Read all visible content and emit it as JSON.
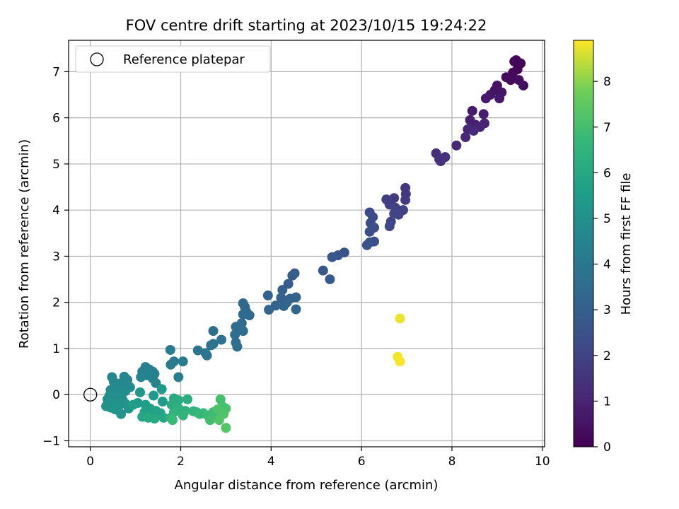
{
  "chart_data": {
    "type": "scatter",
    "title": "FOV centre drift starting at 2023/10/15 19:24:22",
    "xlabel": "Angular distance from reference (arcmin)",
    "ylabel": "Rotation from reference (arcmin)",
    "xlim": [
      -0.48,
      10.05
    ],
    "ylim": [
      -1.13,
      7.68
    ],
    "xticks": [
      0,
      2,
      4,
      6,
      8,
      10
    ],
    "yticks": [
      -1,
      0,
      1,
      2,
      3,
      4,
      5,
      6,
      7
    ],
    "grid": true,
    "legend": {
      "placement": "top-left",
      "entries": [
        "Reference platepar"
      ]
    },
    "reference_point": {
      "x": 0,
      "y": 0
    },
    "colorbar": {
      "label": "Hours from first FF file",
      "colormap": "viridis",
      "range": [
        0,
        8.9
      ],
      "ticks": [
        0,
        1,
        2,
        3,
        4,
        5,
        6,
        7,
        8
      ]
    },
    "points": [
      {
        "x": 9.42,
        "y": 7.25,
        "h": 0.05
      },
      {
        "x": 9.38,
        "y": 7.22,
        "h": 0.08
      },
      {
        "x": 9.52,
        "y": 7.18,
        "h": 0.12
      },
      {
        "x": 9.45,
        "y": 7.05,
        "h": 0.15
      },
      {
        "x": 9.35,
        "y": 6.98,
        "h": 0.2
      },
      {
        "x": 9.2,
        "y": 6.88,
        "h": 0.25
      },
      {
        "x": 9.3,
        "y": 6.82,
        "h": 0.3
      },
      {
        "x": 9.48,
        "y": 6.82,
        "h": 0.35
      },
      {
        "x": 9.58,
        "y": 6.7,
        "h": 0.4
      },
      {
        "x": 9.0,
        "y": 6.7,
        "h": 0.45
      },
      {
        "x": 8.95,
        "y": 6.6,
        "h": 0.5
      },
      {
        "x": 9.1,
        "y": 6.55,
        "h": 0.55
      },
      {
        "x": 8.85,
        "y": 6.5,
        "h": 0.6
      },
      {
        "x": 9.05,
        "y": 6.42,
        "h": 0.65
      },
      {
        "x": 8.75,
        "y": 6.42,
        "h": 0.7
      },
      {
        "x": 8.45,
        "y": 6.15,
        "h": 0.75
      },
      {
        "x": 8.7,
        "y": 6.08,
        "h": 0.8
      },
      {
        "x": 8.4,
        "y": 5.95,
        "h": 0.85
      },
      {
        "x": 8.52,
        "y": 5.85,
        "h": 0.9
      },
      {
        "x": 8.72,
        "y": 5.88,
        "h": 0.95
      },
      {
        "x": 8.62,
        "y": 5.8,
        "h": 1.0
      },
      {
        "x": 8.35,
        "y": 5.75,
        "h": 1.05
      },
      {
        "x": 8.48,
        "y": 5.72,
        "h": 1.1
      },
      {
        "x": 8.3,
        "y": 5.58,
        "h": 1.15
      },
      {
        "x": 8.1,
        "y": 5.4,
        "h": 1.2
      },
      {
        "x": 7.65,
        "y": 5.23,
        "h": 1.3
      },
      {
        "x": 7.85,
        "y": 5.15,
        "h": 1.35
      },
      {
        "x": 7.72,
        "y": 5.1,
        "h": 1.4
      },
      {
        "x": 7.75,
        "y": 5.06,
        "h": 1.45
      },
      {
        "x": 6.97,
        "y": 4.48,
        "h": 1.6
      },
      {
        "x": 6.98,
        "y": 4.35,
        "h": 1.65
      },
      {
        "x": 6.97,
        "y": 4.22,
        "h": 1.7
      },
      {
        "x": 6.72,
        "y": 4.26,
        "h": 1.75
      },
      {
        "x": 6.55,
        "y": 4.23,
        "h": 1.8
      },
      {
        "x": 6.62,
        "y": 4.12,
        "h": 1.85
      },
      {
        "x": 6.75,
        "y": 4.05,
        "h": 1.9
      },
      {
        "x": 6.92,
        "y": 4.0,
        "h": 1.95
      },
      {
        "x": 6.82,
        "y": 3.9,
        "h": 2.0
      },
      {
        "x": 6.72,
        "y": 3.92,
        "h": 2.05
      },
      {
        "x": 6.65,
        "y": 3.75,
        "h": 2.1
      },
      {
        "x": 6.62,
        "y": 3.65,
        "h": 2.15
      },
      {
        "x": 6.18,
        "y": 3.95,
        "h": 2.2
      },
      {
        "x": 6.25,
        "y": 3.85,
        "h": 2.25
      },
      {
        "x": 6.2,
        "y": 3.72,
        "h": 2.3
      },
      {
        "x": 6.28,
        "y": 3.62,
        "h": 2.35
      },
      {
        "x": 6.18,
        "y": 3.53,
        "h": 2.4
      },
      {
        "x": 6.28,
        "y": 3.32,
        "h": 2.45
      },
      {
        "x": 6.18,
        "y": 3.3,
        "h": 2.5
      },
      {
        "x": 6.12,
        "y": 3.24,
        "h": 2.55
      },
      {
        "x": 5.62,
        "y": 3.08,
        "h": 2.6
      },
      {
        "x": 5.48,
        "y": 3.02,
        "h": 2.65
      },
      {
        "x": 5.35,
        "y": 2.98,
        "h": 2.7
      },
      {
        "x": 5.15,
        "y": 2.69,
        "h": 2.75
      },
      {
        "x": 5.3,
        "y": 2.5,
        "h": 2.8
      },
      {
        "x": 4.52,
        "y": 2.63,
        "h": 2.85
      },
      {
        "x": 4.47,
        "y": 2.58,
        "h": 2.9
      },
      {
        "x": 4.38,
        "y": 2.4,
        "h": 2.95
      },
      {
        "x": 4.25,
        "y": 2.27,
        "h": 3.0
      },
      {
        "x": 3.93,
        "y": 2.15,
        "h": 3.05
      },
      {
        "x": 4.55,
        "y": 2.11,
        "h": 3.1
      },
      {
        "x": 4.22,
        "y": 2.1,
        "h": 3.12
      },
      {
        "x": 4.42,
        "y": 2.08,
        "h": 3.15
      },
      {
        "x": 4.35,
        "y": 2.0,
        "h": 3.18
      },
      {
        "x": 4.1,
        "y": 1.93,
        "h": 3.2
      },
      {
        "x": 4.28,
        "y": 1.92,
        "h": 3.22
      },
      {
        "x": 3.95,
        "y": 1.84,
        "h": 3.25
      },
      {
        "x": 4.55,
        "y": 1.85,
        "h": 3.28
      },
      {
        "x": 3.38,
        "y": 1.98,
        "h": 3.35
      },
      {
        "x": 3.42,
        "y": 1.9,
        "h": 3.38
      },
      {
        "x": 3.45,
        "y": 1.8,
        "h": 3.4
      },
      {
        "x": 3.38,
        "y": 1.74,
        "h": 3.42
      },
      {
        "x": 3.52,
        "y": 1.72,
        "h": 3.45
      },
      {
        "x": 3.35,
        "y": 1.55,
        "h": 3.48
      },
      {
        "x": 3.22,
        "y": 1.47,
        "h": 3.5
      },
      {
        "x": 3.3,
        "y": 1.4,
        "h": 3.52
      },
      {
        "x": 3.38,
        "y": 1.38,
        "h": 3.55
      },
      {
        "x": 3.2,
        "y": 1.3,
        "h": 3.58
      },
      {
        "x": 3.22,
        "y": 1.13,
        "h": 3.6
      },
      {
        "x": 3.25,
        "y": 1.04,
        "h": 3.62
      },
      {
        "x": 2.72,
        "y": 1.38,
        "h": 3.7
      },
      {
        "x": 2.9,
        "y": 1.19,
        "h": 3.75
      },
      {
        "x": 2.72,
        "y": 1.1,
        "h": 3.78
      },
      {
        "x": 2.67,
        "y": 1.07,
        "h": 3.8
      },
      {
        "x": 2.38,
        "y": 0.96,
        "h": 3.9
      },
      {
        "x": 2.55,
        "y": 0.9,
        "h": 3.92
      },
      {
        "x": 2.58,
        "y": 0.85,
        "h": 3.95
      },
      {
        "x": 1.77,
        "y": 0.97,
        "h": 4.1
      },
      {
        "x": 1.85,
        "y": 0.72,
        "h": 4.12
      },
      {
        "x": 2.05,
        "y": 0.72,
        "h": 4.15
      },
      {
        "x": 1.78,
        "y": 0.65,
        "h": 4.18
      },
      {
        "x": 1.95,
        "y": 0.38,
        "h": 4.2
      },
      {
        "x": 1.22,
        "y": 0.6,
        "h": 4.3
      },
      {
        "x": 1.3,
        "y": 0.55,
        "h": 4.32
      },
      {
        "x": 1.38,
        "y": 0.5,
        "h": 4.35
      },
      {
        "x": 1.15,
        "y": 0.5,
        "h": 4.38
      },
      {
        "x": 1.42,
        "y": 0.45,
        "h": 4.4
      },
      {
        "x": 1.25,
        "y": 0.42,
        "h": 4.42
      },
      {
        "x": 1.12,
        "y": 0.38,
        "h": 4.45
      },
      {
        "x": 1.38,
        "y": 0.35,
        "h": 4.48
      },
      {
        "x": 1.45,
        "y": 0.25,
        "h": 4.5
      },
      {
        "x": 0.75,
        "y": 0.39,
        "h": 4.6
      },
      {
        "x": 0.48,
        "y": 0.38,
        "h": 4.62
      },
      {
        "x": 0.82,
        "y": 0.32,
        "h": 4.65
      },
      {
        "x": 0.52,
        "y": 0.28,
        "h": 4.68
      },
      {
        "x": 0.65,
        "y": 0.24,
        "h": 4.7
      },
      {
        "x": 0.72,
        "y": 0.2,
        "h": 4.72
      },
      {
        "x": 0.55,
        "y": 0.18,
        "h": 4.74
      },
      {
        "x": 0.88,
        "y": 0.16,
        "h": 4.76
      },
      {
        "x": 0.62,
        "y": 0.12,
        "h": 4.78
      },
      {
        "x": 0.45,
        "y": 0.1,
        "h": 4.8
      },
      {
        "x": 0.78,
        "y": 0.08,
        "h": 4.82
      },
      {
        "x": 0.58,
        "y": 0.05,
        "h": 4.84
      },
      {
        "x": 0.7,
        "y": 0.02,
        "h": 4.86
      },
      {
        "x": 0.5,
        "y": 0.0,
        "h": 4.88
      },
      {
        "x": 0.42,
        "y": -0.03,
        "h": 4.9
      },
      {
        "x": 0.65,
        "y": -0.05,
        "h": 4.92
      },
      {
        "x": 0.55,
        "y": -0.08,
        "h": 4.94
      },
      {
        "x": 0.38,
        "y": -0.1,
        "h": 4.96
      },
      {
        "x": 0.72,
        "y": -0.12,
        "h": 4.98
      },
      {
        "x": 0.48,
        "y": -0.15,
        "h": 5.0
      },
      {
        "x": 0.6,
        "y": -0.18,
        "h": 5.02
      },
      {
        "x": 0.4,
        "y": -0.2,
        "h": 5.04
      },
      {
        "x": 0.52,
        "y": -0.22,
        "h": 5.06
      },
      {
        "x": 0.78,
        "y": -0.2,
        "h": 5.08
      },
      {
        "x": 0.35,
        "y": -0.25,
        "h": 5.1
      },
      {
        "x": 0.62,
        "y": -0.26,
        "h": 5.12
      },
      {
        "x": 0.45,
        "y": -0.28,
        "h": 5.14
      },
      {
        "x": 0.85,
        "y": -0.3,
        "h": 5.16
      },
      {
        "x": 0.55,
        "y": -0.32,
        "h": 5.18
      },
      {
        "x": 0.68,
        "y": -0.42,
        "h": 5.2
      },
      {
        "x": 1.1,
        "y": 0.05,
        "h": 5.3
      },
      {
        "x": 1.58,
        "y": 0.12,
        "h": 5.35
      },
      {
        "x": 1.4,
        "y": -0.02,
        "h": 5.4
      },
      {
        "x": 1.6,
        "y": -0.15,
        "h": 5.45
      },
      {
        "x": 1.05,
        "y": -0.18,
        "h": 5.5
      },
      {
        "x": 1.22,
        "y": -0.22,
        "h": 5.55
      },
      {
        "x": 0.95,
        "y": -0.22,
        "h": 5.6
      },
      {
        "x": 1.32,
        "y": -0.3,
        "h": 5.65
      },
      {
        "x": 1.45,
        "y": -0.35,
        "h": 5.7
      },
      {
        "x": 1.2,
        "y": -0.38,
        "h": 5.75
      },
      {
        "x": 1.55,
        "y": -0.4,
        "h": 5.8
      },
      {
        "x": 1.38,
        "y": -0.45,
        "h": 5.85
      },
      {
        "x": 1.15,
        "y": -0.48,
        "h": 5.9
      },
      {
        "x": 1.62,
        "y": -0.5,
        "h": 5.95
      },
      {
        "x": 1.42,
        "y": -0.52,
        "h": 6.0
      },
      {
        "x": 1.28,
        "y": -0.5,
        "h": 6.05
      },
      {
        "x": 1.85,
        "y": -0.08,
        "h": 6.1
      },
      {
        "x": 1.95,
        "y": -0.12,
        "h": 6.15
      },
      {
        "x": 2.15,
        "y": -0.1,
        "h": 6.2
      },
      {
        "x": 1.8,
        "y": -0.22,
        "h": 6.25
      },
      {
        "x": 1.95,
        "y": -0.3,
        "h": 6.3
      },
      {
        "x": 2.1,
        "y": -0.35,
        "h": 6.35
      },
      {
        "x": 2.28,
        "y": -0.36,
        "h": 6.4
      },
      {
        "x": 1.85,
        "y": -0.38,
        "h": 6.45
      },
      {
        "x": 2.05,
        "y": -0.45,
        "h": 6.5
      },
      {
        "x": 2.35,
        "y": -0.38,
        "h": 6.55
      },
      {
        "x": 2.5,
        "y": -0.4,
        "h": 6.6
      },
      {
        "x": 1.78,
        "y": -0.5,
        "h": 6.65
      },
      {
        "x": 2.42,
        "y": -0.42,
        "h": 6.7
      },
      {
        "x": 1.82,
        "y": -0.55,
        "h": 6.75
      },
      {
        "x": 2.6,
        "y": -0.45,
        "h": 6.8
      },
      {
        "x": 2.72,
        "y": -0.38,
        "h": 6.85
      },
      {
        "x": 2.78,
        "y": -0.5,
        "h": 6.9
      },
      {
        "x": 2.65,
        "y": -0.55,
        "h": 6.95
      },
      {
        "x": 2.88,
        "y": -0.1,
        "h": 7.0
      },
      {
        "x": 2.92,
        "y": -0.25,
        "h": 7.05
      },
      {
        "x": 3.0,
        "y": -0.3,
        "h": 7.1
      },
      {
        "x": 2.82,
        "y": -0.32,
        "h": 7.15
      },
      {
        "x": 2.95,
        "y": -0.42,
        "h": 7.2
      },
      {
        "x": 2.85,
        "y": -0.55,
        "h": 7.25
      },
      {
        "x": 3.0,
        "y": -0.72,
        "h": 7.3
      },
      {
        "x": 6.85,
        "y": 1.65,
        "h": 8.75
      },
      {
        "x": 6.8,
        "y": 0.82,
        "h": 8.8
      },
      {
        "x": 6.85,
        "y": 0.72,
        "h": 8.85
      }
    ]
  }
}
